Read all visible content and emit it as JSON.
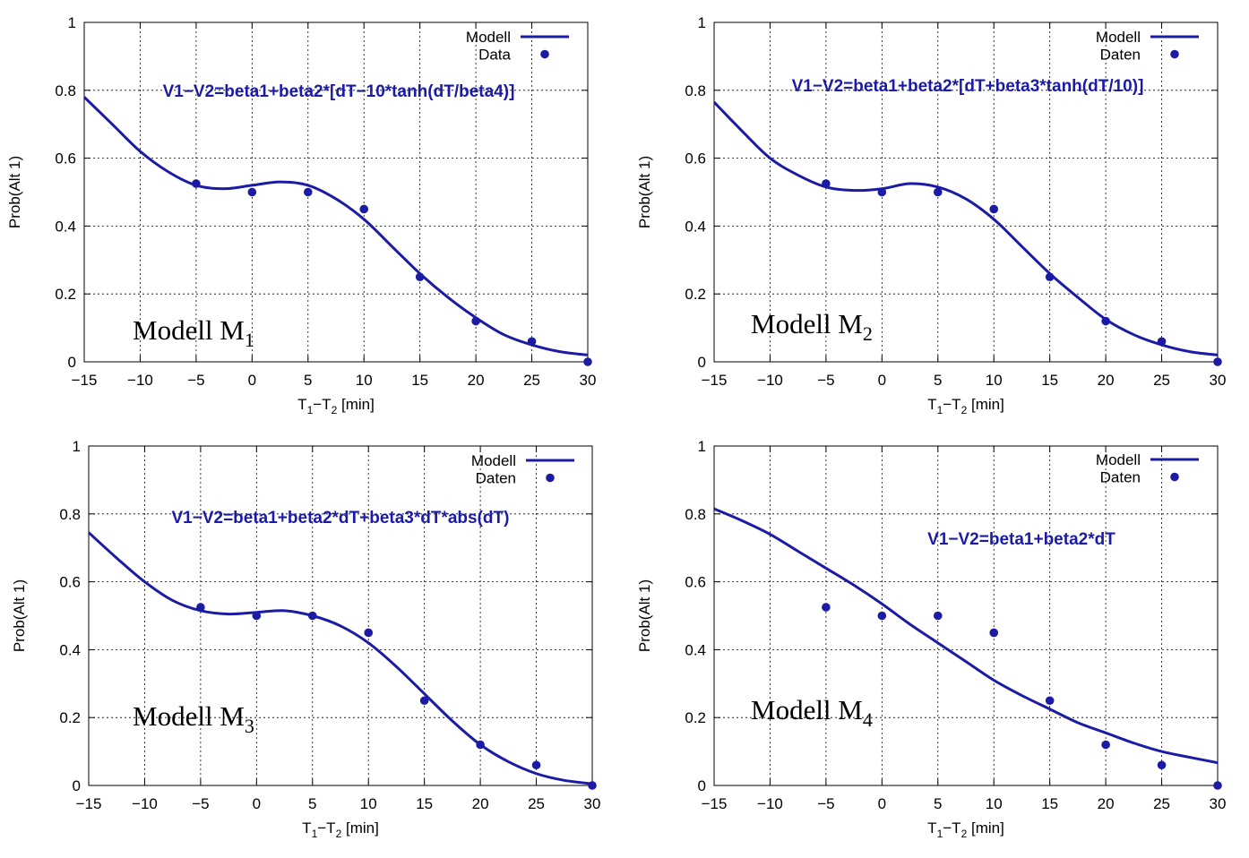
{
  "chart_data": [
    {
      "type": "line",
      "model_label": "Modell M",
      "model_sub": "1",
      "formula": "V1−V2=beta1+beta2*[dT−10*tanh(dT/beta4)]",
      "ylabel": "Prob(Alt 1)",
      "xlabel_main": "T",
      "xlabel_sub1": "1",
      "xlabel_mid": "−T",
      "xlabel_sub2": "2",
      "xlabel_unit": " [min]",
      "xlim": [
        -15,
        30
      ],
      "ylim": [
        0,
        1
      ],
      "xticks": [
        -15,
        -10,
        -5,
        0,
        5,
        10,
        15,
        20,
        25,
        30
      ],
      "xtick_labels": [
        "−15",
        "−10",
        "−5",
        "0",
        "5",
        "10",
        "15",
        "20",
        "25",
        "30"
      ],
      "yticks": [
        0,
        0.2,
        0.4,
        0.6,
        0.8,
        1
      ],
      "ytick_labels": [
        "0",
        "0.2",
        "0.4",
        "0.6",
        "0.8",
        "1"
      ],
      "legend_position": "top-right",
      "series": [
        {
          "name": "Modell",
          "kind": "line",
          "color": "#1b1ba6",
          "x": [
            -15,
            -12.5,
            -10,
            -7.5,
            -5,
            -2.5,
            0,
            2.5,
            5,
            7.5,
            10,
            12.5,
            15,
            17.5,
            20,
            22.5,
            25,
            27.5,
            30
          ],
          "y": [
            0.78,
            0.7,
            0.62,
            0.56,
            0.52,
            0.51,
            0.52,
            0.53,
            0.52,
            0.48,
            0.42,
            0.34,
            0.26,
            0.19,
            0.13,
            0.08,
            0.05,
            0.03,
            0.02
          ]
        },
        {
          "name": "Data",
          "kind": "scatter",
          "color": "#1b1ba6",
          "x": [
            -5,
            0,
            5,
            10,
            15,
            20,
            25,
            30
          ],
          "y": [
            0.525,
            0.5,
            0.5,
            0.45,
            0.25,
            0.12,
            0.06,
            0.0
          ]
        }
      ]
    },
    {
      "type": "line",
      "model_label": "Modell M",
      "model_sub": "2",
      "formula": "V1−V2=beta1+beta2*[dT+beta3*tanh(dT/10)]",
      "ylabel": "Prob(Alt 1)",
      "xlabel_main": "T",
      "xlabel_sub1": "1",
      "xlabel_mid": "−T",
      "xlabel_sub2": "2",
      "xlabel_unit": " [min]",
      "xlim": [
        -15,
        30
      ],
      "ylim": [
        0,
        1
      ],
      "xticks": [
        -15,
        -10,
        -5,
        0,
        5,
        10,
        15,
        20,
        25,
        30
      ],
      "xtick_labels": [
        "−15",
        "−10",
        "−5",
        "0",
        "5",
        "10",
        "15",
        "20",
        "25",
        "30"
      ],
      "yticks": [
        0,
        0.2,
        0.4,
        0.6,
        0.8,
        1
      ],
      "ytick_labels": [
        "0",
        "0.2",
        "0.4",
        "0.6",
        "0.8",
        "1"
      ],
      "legend_position": "top-right",
      "series": [
        {
          "name": "Modell",
          "kind": "line",
          "color": "#1b1ba6",
          "x": [
            -15,
            -12.5,
            -10,
            -7.5,
            -5,
            -2.5,
            0,
            2.5,
            5,
            7.5,
            10,
            12.5,
            15,
            17.5,
            20,
            22.5,
            25,
            27.5,
            30
          ],
          "y": [
            0.765,
            0.68,
            0.6,
            0.55,
            0.515,
            0.505,
            0.51,
            0.525,
            0.515,
            0.48,
            0.42,
            0.34,
            0.26,
            0.19,
            0.125,
            0.08,
            0.05,
            0.03,
            0.02
          ]
        },
        {
          "name": "Daten",
          "kind": "scatter",
          "color": "#1b1ba6",
          "x": [
            -5,
            0,
            5,
            10,
            15,
            20,
            25,
            30
          ],
          "y": [
            0.525,
            0.5,
            0.5,
            0.45,
            0.25,
            0.12,
            0.06,
            0.0
          ]
        }
      ]
    },
    {
      "type": "line",
      "model_label": "Modell M",
      "model_sub": "3",
      "formula": "V1−V2=beta1+beta2*dT+beta3*dT*abs(dT)",
      "ylabel": "Prob(Alt 1)",
      "xlabel_main": "T",
      "xlabel_sub1": "1",
      "xlabel_mid": "−T",
      "xlabel_sub2": "2",
      "xlabel_unit": " [min]",
      "xlim": [
        -15,
        30
      ],
      "ylim": [
        0,
        1
      ],
      "xticks": [
        -15,
        -10,
        -5,
        0,
        5,
        10,
        15,
        20,
        25,
        30
      ],
      "xtick_labels": [
        "−15",
        "−10",
        "−5",
        "0",
        "5",
        "10",
        "15",
        "20",
        "25",
        "30"
      ],
      "yticks": [
        0,
        0.2,
        0.4,
        0.6,
        0.8,
        1
      ],
      "ytick_labels": [
        "0",
        "0.2",
        "0.4",
        "0.6",
        "0.8",
        "1"
      ],
      "legend_position": "top-right",
      "series": [
        {
          "name": "Modell",
          "kind": "line",
          "color": "#1b1ba6",
          "x": [
            -15,
            -12.5,
            -10,
            -7.5,
            -5,
            -2.5,
            0,
            2.5,
            5,
            7.5,
            10,
            12.5,
            15,
            17.5,
            20,
            22.5,
            25,
            27.5,
            30
          ],
          "y": [
            0.745,
            0.67,
            0.6,
            0.545,
            0.515,
            0.505,
            0.51,
            0.515,
            0.5,
            0.47,
            0.42,
            0.35,
            0.27,
            0.19,
            0.12,
            0.07,
            0.035,
            0.015,
            0.005
          ]
        },
        {
          "name": "Daten",
          "kind": "scatter",
          "color": "#1b1ba6",
          "x": [
            -5,
            0,
            5,
            10,
            15,
            20,
            25,
            30
          ],
          "y": [
            0.525,
            0.5,
            0.5,
            0.45,
            0.25,
            0.12,
            0.06,
            0.0
          ]
        }
      ]
    },
    {
      "type": "line",
      "model_label": "Modell M",
      "model_sub": "4",
      "formula": "V1−V2=beta1+beta2*dT",
      "ylabel": "Prob(Alt 1)",
      "xlabel_main": "T",
      "xlabel_sub1": "1",
      "xlabel_mid": "−T",
      "xlabel_sub2": "2",
      "xlabel_unit": " [min]",
      "xlim": [
        -15,
        30
      ],
      "ylim": [
        0,
        1
      ],
      "xticks": [
        -15,
        -10,
        -5,
        0,
        5,
        10,
        15,
        20,
        25,
        30
      ],
      "xtick_labels": [
        "−15",
        "−10",
        "−5",
        "0",
        "5",
        "10",
        "15",
        "20",
        "25",
        "30"
      ],
      "yticks": [
        0,
        0.2,
        0.4,
        0.6,
        0.8,
        1
      ],
      "ytick_labels": [
        "0",
        "0.2",
        "0.4",
        "0.6",
        "0.8",
        "1"
      ],
      "legend_position": "top-right",
      "series": [
        {
          "name": "Modell",
          "kind": "line",
          "color": "#1b1ba6",
          "x": [
            -15,
            -12.5,
            -10,
            -7.5,
            -5,
            -2.5,
            0,
            2.5,
            5,
            7.5,
            10,
            12.5,
            15,
            17.5,
            20,
            22.5,
            25,
            27.5,
            30
          ],
          "y": [
            0.815,
            0.78,
            0.74,
            0.69,
            0.64,
            0.59,
            0.535,
            0.475,
            0.42,
            0.365,
            0.31,
            0.265,
            0.225,
            0.185,
            0.155,
            0.125,
            0.1,
            0.083,
            0.067
          ]
        },
        {
          "name": "Daten",
          "kind": "scatter",
          "color": "#1b1ba6",
          "x": [
            -5,
            0,
            5,
            10,
            15,
            20,
            25,
            30
          ],
          "y": [
            0.525,
            0.5,
            0.5,
            0.45,
            0.25,
            0.12,
            0.06,
            0.0
          ]
        }
      ]
    }
  ]
}
